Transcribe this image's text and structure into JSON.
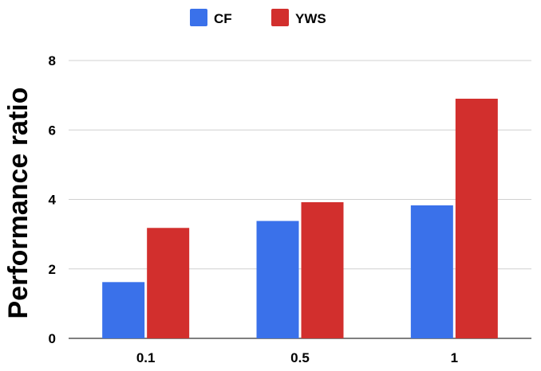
{
  "chart_data": {
    "type": "bar",
    "categories": [
      "0.1",
      "0.5",
      "1"
    ],
    "series": [
      {
        "name": "CF",
        "values": [
          1.62,
          3.38,
          3.83
        ],
        "color": "#3a71ea"
      },
      {
        "name": "YWS",
        "values": [
          3.18,
          3.92,
          6.9
        ],
        "color": "#d22f2d"
      }
    ],
    "title": "",
    "xlabel": "",
    "ylabel": "Performance ratio",
    "ylim": [
      0,
      8
    ],
    "yticks": [
      "0",
      "2",
      "4",
      "6",
      "8"
    ],
    "grid": true,
    "legend_position": "top"
  }
}
